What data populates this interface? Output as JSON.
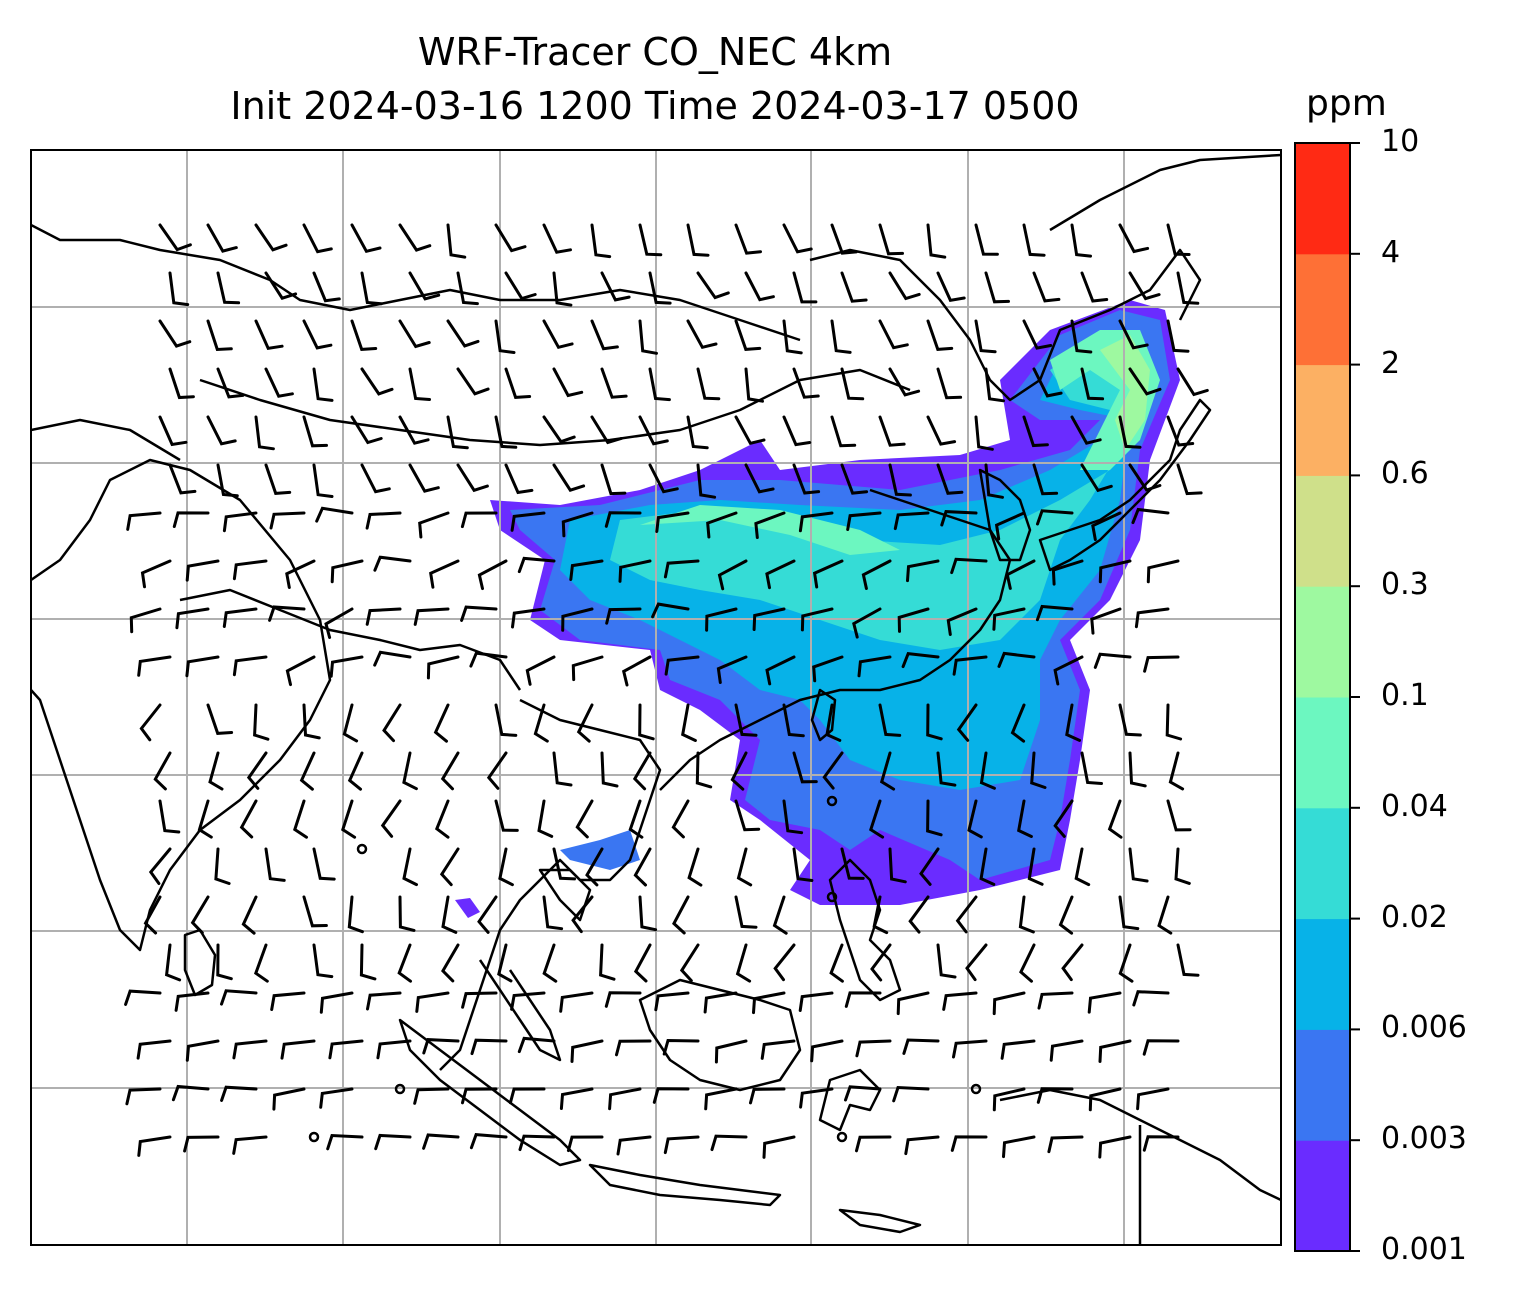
{
  "title": {
    "line1": "WRF-Tracer CO_NEC 4km",
    "line2": "Init 2024-03-16 1200 Time 2024-03-17 0500"
  },
  "colorbar": {
    "unit": "ppm",
    "levels": [
      "0.001",
      "0.003",
      "0.006",
      "0.02",
      "0.04",
      "0.1",
      "0.3",
      "0.6",
      "2",
      "4",
      "10"
    ],
    "colors": [
      "#6a2cff",
      "#3a76f2",
      "#07b2e8",
      "#35dcd6",
      "#6cf7c0",
      "#9ef9a0",
      "#cfe08a",
      "#fcb063",
      "#fe7036",
      "#ff2a14"
    ]
  },
  "map": {
    "field": "CO tracer concentration with wind barbs",
    "plume_colors": {
      "level1": "#6a2cff",
      "level2": "#3a76f2",
      "level3": "#07b2e8",
      "level4": "#35dcd6",
      "level5": "#6cf7c0",
      "level6": "#9ef9a0"
    },
    "gridline_color": "#b0b0b0"
  }
}
